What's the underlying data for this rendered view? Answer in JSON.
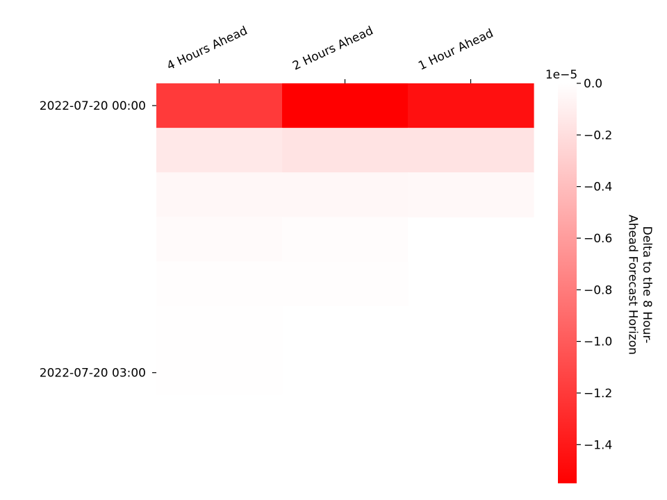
{
  "chart_data": {
    "type": "heatmap",
    "title": "",
    "columns": [
      "4 Hours Ahead",
      "2 Hours Ahead",
      "1 Hour Ahead"
    ],
    "row_tick_labels": [
      {
        "row": 0,
        "label": "2022-07-20 00:00"
      },
      {
        "row": 6,
        "label": "2022-07-20 03:00"
      }
    ],
    "n_rows": 9,
    "values": [
      [
        -1.2e-05,
        -1.55e-05,
        -1.45e-05
      ],
      [
        -1.4e-06,
        -1.7e-06,
        -1.7e-06
      ],
      [
        -5e-07,
        -5e-07,
        -4e-07
      ],
      [
        -3e-07,
        -2e-07,
        null
      ],
      [
        -1e-07,
        -1e-07,
        null
      ],
      [
        -5e-08,
        null,
        null
      ],
      [
        -4e-08,
        null,
        null
      ],
      [
        -3e-08,
        null,
        null
      ],
      [
        -3e-08,
        null,
        null
      ]
    ],
    "colorbar": {
      "label": "Delta to the 8 Hour-\nAhead Forecast Horizon",
      "min": -1.55e-05,
      "max": 0.0,
      "offset_text": "1e−5",
      "tick_values": [
        0.0,
        -0.2,
        -0.4,
        -0.6,
        -0.8,
        -1.0,
        -1.2,
        -1.4
      ],
      "tick_labels": [
        "0.0",
        "−0.2",
        "−0.4",
        "−0.6",
        "−0.8",
        "−1.0",
        "−1.2",
        "−1.4"
      ],
      "color_low": "#ff0000",
      "color_high": "#ffffff"
    }
  }
}
